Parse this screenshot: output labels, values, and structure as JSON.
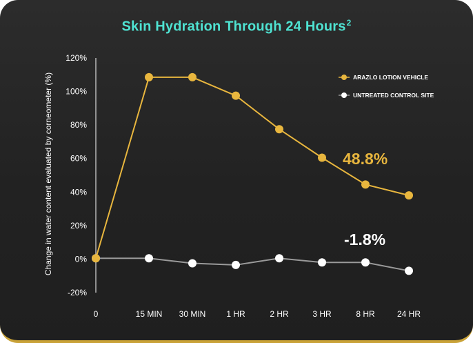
{
  "chart_data": {
    "type": "line",
    "title": "Skin Hydration Through 24 Hours",
    "title_superscript": "2",
    "xlabel": "",
    "ylabel": "Change in water content evaluated by corneometer  (%)",
    "categories": [
      "0",
      "15 MIN",
      "30 MIN",
      "1 HR",
      "2 HR",
      "3 HR",
      "8 HR",
      "24 HR"
    ],
    "ylim": [
      -20,
      120
    ],
    "yticks": [
      -20,
      0,
      20,
      40,
      60,
      80,
      100,
      120
    ],
    "ytick_labels": [
      "-20%",
      "0%",
      "20%",
      "40%",
      "60%",
      "80%",
      "100%",
      "120%"
    ],
    "series": [
      {
        "name": "ARAZLO LOTION VEHICLE",
        "color": "#e8b63e",
        "values": [
          0.5,
          108.5,
          108.5,
          97.5,
          77.5,
          60.5,
          44.5,
          38
        ]
      },
      {
        "name": "UNTREATED CONTROL SITE",
        "color": "#ffffff",
        "values": [
          0.5,
          0.5,
          -2.5,
          -3.5,
          0.5,
          -2,
          -2,
          -7
        ]
      }
    ],
    "annotations": [
      {
        "text": "48.8%",
        "series": 0
      },
      {
        "text": "-1.8%",
        "series": 1
      }
    ],
    "legend_position": "top-right",
    "grid": false
  }
}
